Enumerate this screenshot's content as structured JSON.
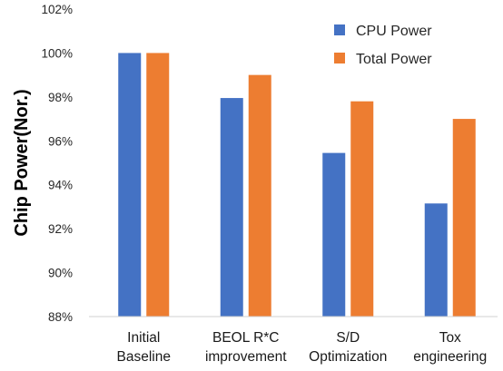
{
  "chart_data": {
    "type": "bar",
    "ylabel": "Chip Power(Nor.)",
    "xlabel": "",
    "ylim": [
      88,
      102
    ],
    "ytick_step": 2,
    "yticks": [
      "88%",
      "90%",
      "92%",
      "94%",
      "96%",
      "98%",
      "100%",
      "102%"
    ],
    "grid": false,
    "legend_position": "top-right",
    "categories": [
      [
        "Initial",
        "Baseline"
      ],
      [
        "BEOL R*C",
        "improvement"
      ],
      [
        "S/D",
        "Optimization"
      ],
      [
        "Tox",
        "engineering"
      ]
    ],
    "series": [
      {
        "name": "CPU Power",
        "color": "#4472C4",
        "values": [
          100,
          97.95,
          95.45,
          93.15
        ]
      },
      {
        "name": "Total Power",
        "color": "#ED7D31",
        "values": [
          100,
          99.0,
          97.8,
          97.0
        ]
      }
    ]
  }
}
